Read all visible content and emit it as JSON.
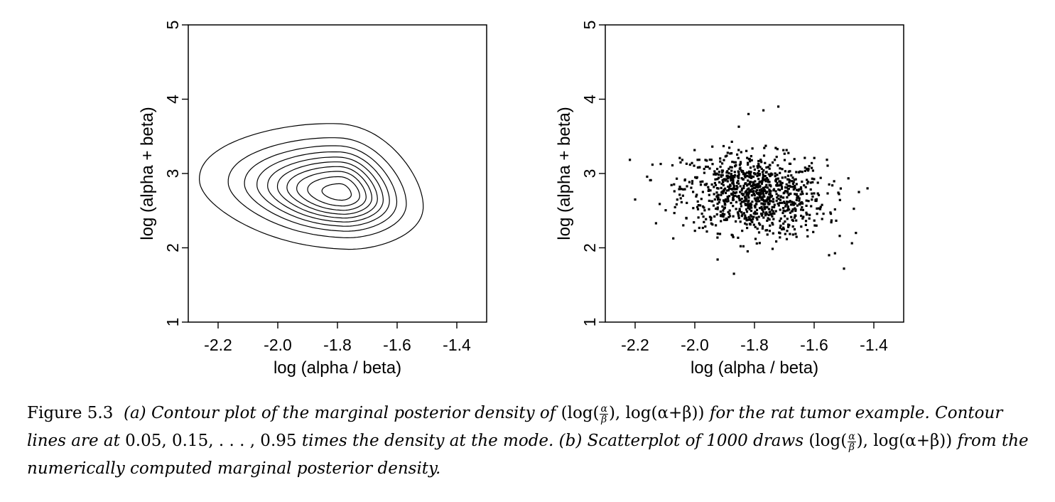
{
  "chart_data": [
    {
      "type": "contour",
      "panel": "(a)",
      "xlabel": "log (alpha / beta)",
      "ylabel": "log (alpha + beta)",
      "xlim": [
        -2.3,
        -1.3
      ],
      "ylim": [
        1,
        5
      ],
      "xticks": [
        "-2.2",
        "-2.0",
        "-1.8",
        "-1.6",
        "-1.4"
      ],
      "yticks": [
        "1",
        "2",
        "3",
        "4",
        "5"
      ],
      "mode": {
        "x": -1.79,
        "y": 2.74
      },
      "contour_levels": [
        0.05,
        0.15,
        0.25,
        0.35,
        0.45,
        0.55,
        0.65,
        0.75,
        0.85,
        0.95
      ],
      "contour_extent_outer": {
        "x": [
          -2.25,
          -1.52
        ],
        "y": [
          2.0,
          3.65
        ]
      },
      "grid": false
    },
    {
      "type": "scatter",
      "panel": "(b)",
      "xlabel": "log (alpha / beta)",
      "ylabel": "log (alpha + beta)",
      "xlim": [
        -2.3,
        -1.3
      ],
      "ylim": [
        1,
        5
      ],
      "xticks": [
        "-2.2",
        "-2.0",
        "-1.8",
        "-1.6",
        "-1.4"
      ],
      "yticks": [
        "1",
        "2",
        "3",
        "4",
        "5"
      ],
      "n_points": 1000,
      "distribution_center": {
        "x": -1.8,
        "y": 2.72
      },
      "distribution_sd": {
        "x": 0.12,
        "y": 0.32
      },
      "points_notable": [
        {
          "x": -2.2,
          "y": 2.65
        },
        {
          "x": -2.13,
          "y": 2.33
        },
        {
          "x": -1.5,
          "y": 1.72
        },
        {
          "x": -1.72,
          "y": 3.9
        },
        {
          "x": -1.77,
          "y": 3.85
        },
        {
          "x": -1.82,
          "y": 3.8
        },
        {
          "x": -1.45,
          "y": 2.75
        },
        {
          "x": -1.46,
          "y": 2.2
        },
        {
          "x": -1.55,
          "y": 1.9
        }
      ],
      "grid": false
    }
  ],
  "caption": {
    "label": "Figure 5.3",
    "p1": "(a) Contour plot of the marginal posterior density of",
    "m1a": "(log(",
    "m1b": "), log(α+β))",
    "p2": "for the rat tumor",
    "p3": "example. Contour lines are at",
    "m2": "0.05, 0.15, . . . , 0.95",
    "p4": "times the density at the mode. (b) Scatterplot of",
    "p5": "1000 draws",
    "m3a": "(log(",
    "m3b": "), log(α+β))",
    "p6": "from the numerically computed marginal posterior density.",
    "frac_num": "α",
    "frac_den": "β"
  }
}
